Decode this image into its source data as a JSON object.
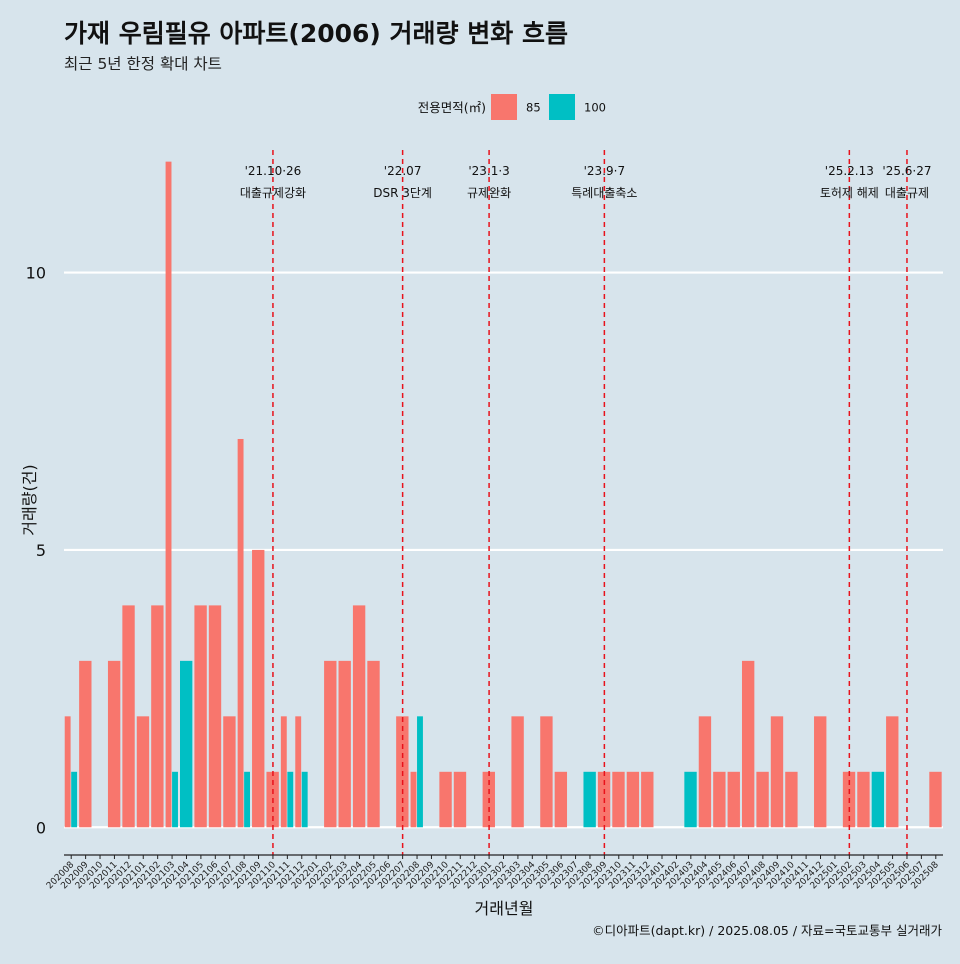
{
  "chart_data": {
    "type": "bar",
    "title": "가재 우림필유 아파트(2006) 거래량 변화 흐름",
    "subtitle": "최근 5년 한정 확대 차트",
    "xlabel": "거래년월",
    "ylabel": "거래량(건)",
    "ylim": [
      -0.5,
      12.3
    ],
    "yticks": [
      0,
      5,
      10
    ],
    "grid": true,
    "legend": {
      "title": "전용면적(㎡)",
      "position": "top"
    },
    "caption": "©디아파트(dapt.kr) / 2025.08.05 / 자료=국토교통부 실거래가",
    "categories": [
      "202008",
      "202009",
      "202010",
      "202011",
      "202012",
      "202101",
      "202102",
      "202103",
      "202104",
      "202105",
      "202106",
      "202107",
      "202108",
      "202109",
      "202110",
      "202111",
      "202112",
      "202201",
      "202202",
      "202203",
      "202204",
      "202205",
      "202206",
      "202207",
      "202208",
      "202209",
      "202210",
      "202211",
      "202212",
      "202301",
      "202302",
      "202303",
      "202304",
      "202305",
      "202306",
      "202307",
      "202308",
      "202309",
      "202310",
      "202311",
      "202312",
      "202401",
      "202402",
      "202403",
      "202404",
      "202405",
      "202406",
      "202407",
      "202408",
      "202409",
      "202410",
      "202411",
      "202412",
      "202501",
      "202502",
      "202503",
      "202504",
      "202505",
      "202506",
      "202507",
      "202508"
    ],
    "series": [
      {
        "name": "85",
        "color": "#f8766d",
        "values": [
          2,
          3,
          0,
          3,
          4,
          2,
          4,
          12,
          0,
          4,
          4,
          2,
          7,
          5,
          1,
          2,
          2,
          0,
          3,
          3,
          4,
          3,
          0,
          2,
          1,
          0,
          1,
          1,
          0,
          1,
          0,
          2,
          0,
          2,
          1,
          0,
          0,
          1,
          1,
          1,
          1,
          0,
          0,
          0,
          2,
          1,
          1,
          3,
          1,
          2,
          1,
          0,
          2,
          0,
          1,
          1,
          0,
          2,
          0,
          0,
          1
        ]
      },
      {
        "name": "100",
        "color": "#00bfc4",
        "values": [
          1,
          0,
          0,
          0,
          0,
          0,
          0,
          1,
          3,
          0,
          0,
          0,
          1,
          0,
          0,
          1,
          1,
          0,
          0,
          0,
          0,
          0,
          0,
          0,
          2,
          0,
          0,
          0,
          0,
          0,
          0,
          0,
          0,
          0,
          0,
          0,
          1,
          0,
          0,
          0,
          0,
          0,
          0,
          1,
          0,
          0,
          0,
          0,
          0,
          0,
          0,
          0,
          0,
          0,
          0,
          0,
          1,
          0,
          0,
          0,
          0
        ]
      }
    ],
    "annotations": [
      {
        "month": "202110",
        "date": "'21.10·26",
        "label": "대출규제강화"
      },
      {
        "month": "202207",
        "date": "'22.07",
        "label": "DSR 3단계"
      },
      {
        "month": "202301",
        "date": "'23.1·3",
        "label": "규제완화"
      },
      {
        "month": "202309",
        "date": "'23.9·7",
        "label": "특례대출축소"
      },
      {
        "month": "202502",
        "date": "'25.2.13",
        "label": "토허제 해제"
      },
      {
        "month": "202506",
        "date": "'25.6·27",
        "label": "대출규제"
      }
    ],
    "colors": {
      "background": "#d7e4ec",
      "grid": "#ffffff",
      "event_line": "#e8121b"
    }
  }
}
